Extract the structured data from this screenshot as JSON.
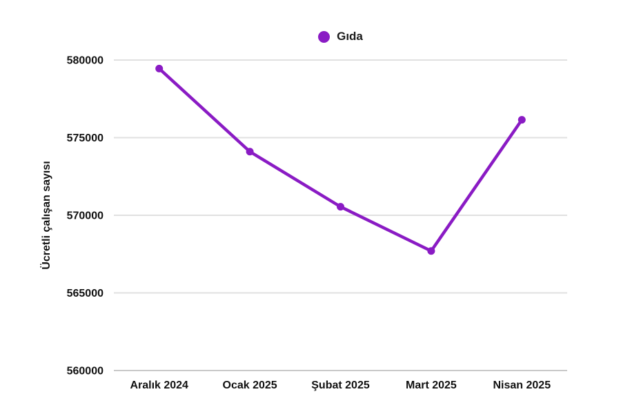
{
  "legend": {
    "label": "Gıda"
  },
  "chart_data": {
    "type": "line",
    "title": "",
    "categories": [
      "Aralık 2024",
      "Ocak 2025",
      "Şubat 2025",
      "Mart 2025",
      "Nisan 2025"
    ],
    "series": [
      {
        "name": "Gıda",
        "color": "#8a1bc4",
        "values": [
          579450,
          574100,
          570550,
          567700,
          576150
        ]
      }
    ],
    "xlabel": "",
    "ylabel": "Ücretli çalışan sayısı",
    "ylim": [
      560000,
      580000
    ],
    "yticks": [
      560000,
      565000,
      570000,
      575000,
      580000
    ],
    "grid": true,
    "legend_position": "top"
  },
  "colors": {
    "background": "#ffffff",
    "gridline": "#e0e0e0",
    "baseline": "#c9c9c9",
    "axis_text": "#111111"
  }
}
